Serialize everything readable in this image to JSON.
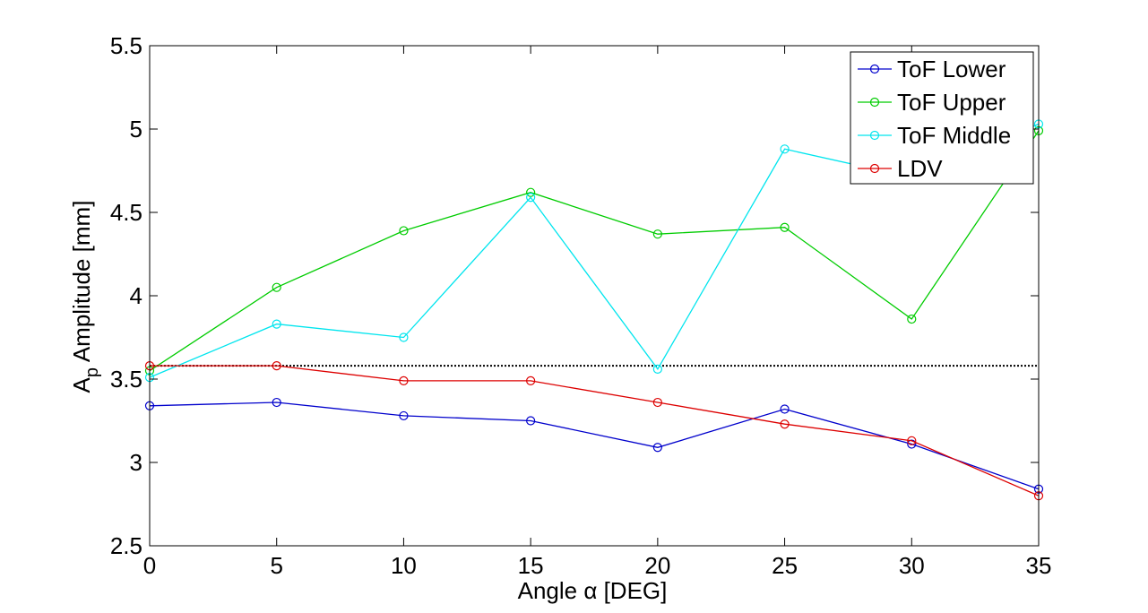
{
  "chart_data": {
    "type": "line",
    "x": [
      0,
      5,
      10,
      15,
      20,
      25,
      30,
      35
    ],
    "xlim": [
      0,
      35
    ],
    "ylim": [
      2.5,
      5.5
    ],
    "xticks": [
      "0",
      "5",
      "10",
      "15",
      "20",
      "25",
      "30",
      "35"
    ],
    "yticks": [
      "2.5",
      "3",
      "3.5",
      "4",
      "4.5",
      "5",
      "5.5"
    ],
    "xlabel": "Angle α [DEG]",
    "ylabel_main": "A",
    "ylabel_sub": "p",
    "ylabel_rest": " Amplitude [mm]",
    "legend_position": "top-right",
    "grid": false,
    "marker": "circle",
    "series": [
      {
        "name": "ToF Lower",
        "color": "#0000cc",
        "values": [
          3.34,
          3.36,
          3.28,
          3.25,
          3.09,
          3.32,
          3.11,
          2.84
        ]
      },
      {
        "name": "ToF Upper",
        "color": "#00cc00",
        "values": [
          3.55,
          4.05,
          4.39,
          4.62,
          4.37,
          4.41,
          3.86,
          4.99
        ]
      },
      {
        "name": "ToF Middle",
        "color": "#00e5ee",
        "values": [
          3.51,
          3.83,
          3.75,
          4.59,
          3.56,
          4.88,
          4.71,
          5.03
        ]
      },
      {
        "name": "LDV",
        "color": "#dd0000",
        "values": [
          3.58,
          3.58,
          3.49,
          3.49,
          3.36,
          3.23,
          3.13,
          2.8
        ]
      }
    ],
    "reference_line": {
      "value": 3.58,
      "style": "dotted",
      "color": "#000000"
    }
  }
}
